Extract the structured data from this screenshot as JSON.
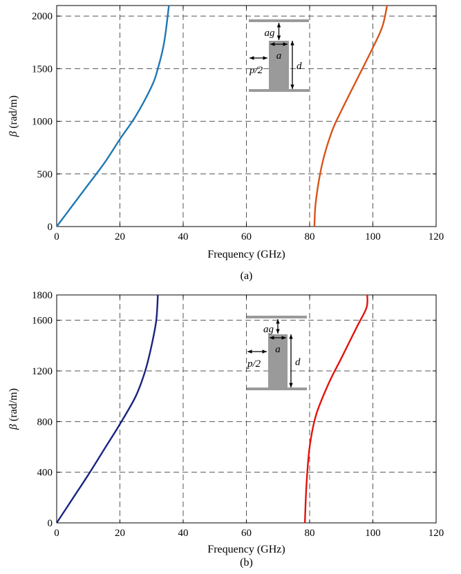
{
  "chart_data": [
    {
      "type": "line",
      "panel_label": "(a)",
      "xlabel": "Frequency (GHz)",
      "ylabel_symbol": "β",
      "ylabel_unit": " (rad/m)",
      "xlim": [
        0,
        120
      ],
      "ylim": [
        0,
        2100
      ],
      "xticks": [
        0,
        20,
        40,
        60,
        80,
        100,
        120
      ],
      "yticks": [
        0,
        500,
        1000,
        1500,
        2000
      ],
      "grid": true,
      "series": [
        {
          "color": "#1f77b4",
          "x": [
            0,
            5,
            10,
            15,
            20,
            25,
            30,
            32,
            34,
            35.5
          ],
          "y": [
            0,
            200,
            400,
            600,
            830,
            1050,
            1330,
            1500,
            1750,
            2100
          ]
        },
        {
          "color": "#d95319",
          "x": [
            81.5,
            82,
            84,
            87,
            90,
            95,
            100,
            103,
            104.5
          ],
          "y": [
            0,
            250,
            600,
            900,
            1100,
            1400,
            1700,
            1900,
            2100
          ]
        }
      ],
      "inset_labels": {
        "ag": "ag",
        "a": "a",
        "p2": "p/2",
        "d": "d"
      }
    },
    {
      "type": "line",
      "panel_label": "(b)",
      "xlabel": "Frequency (GHz)",
      "ylabel_symbol": "β",
      "ylabel_unit": " (rad/m)",
      "xlim": [
        0,
        120
      ],
      "ylim": [
        0,
        1800
      ],
      "xticks": [
        0,
        20,
        40,
        60,
        80,
        100,
        120
      ],
      "yticks": [
        0,
        400,
        800,
        1200,
        1600,
        1800
      ],
      "grid": true,
      "series": [
        {
          "color": "#1a237e",
          "x": [
            0,
            5,
            10,
            15,
            20,
            25,
            28,
            30,
            31.5,
            32
          ],
          "y": [
            0,
            190,
            380,
            580,
            780,
            1000,
            1200,
            1400,
            1600,
            1800
          ]
        },
        {
          "color": "#e3120b",
          "x": [
            78.5,
            79,
            80,
            82,
            86,
            90,
            95,
            98,
            98.2
          ],
          "y": [
            0,
            300,
            600,
            850,
            1100,
            1300,
            1550,
            1700,
            1800
          ]
        }
      ],
      "inset_labels": {
        "ag": "ag",
        "a": "a",
        "p2": "p/2",
        "d": "d"
      }
    }
  ]
}
